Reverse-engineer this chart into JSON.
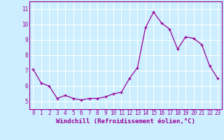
{
  "x": [
    0,
    1,
    2,
    3,
    4,
    5,
    6,
    7,
    8,
    9,
    10,
    11,
    12,
    13,
    14,
    15,
    16,
    17,
    18,
    19,
    20,
    21,
    22,
    23
  ],
  "y": [
    7.1,
    6.2,
    6.0,
    5.2,
    5.4,
    5.2,
    5.1,
    5.2,
    5.2,
    5.3,
    5.5,
    5.6,
    6.5,
    7.2,
    9.8,
    10.8,
    10.1,
    9.7,
    8.4,
    9.2,
    9.1,
    8.7,
    7.3,
    6.5
  ],
  "line_color": "#990099",
  "marker": "+",
  "bg_color": "#cceeff",
  "grid_color": "#ffffff",
  "xlabel": "Windchill (Refroidissement éolien,°C)",
  "ylim": [
    4.5,
    11.5
  ],
  "xlim": [
    -0.5,
    23.5
  ],
  "yticks": [
    5,
    6,
    7,
    8,
    9,
    10,
    11
  ],
  "xticks": [
    0,
    1,
    2,
    3,
    4,
    5,
    6,
    7,
    8,
    9,
    10,
    11,
    12,
    13,
    14,
    15,
    16,
    17,
    18,
    19,
    20,
    21,
    22,
    23
  ],
  "tick_label_fontsize": 5.5,
  "xlabel_fontsize": 6.5,
  "marker_size": 3,
  "line_width": 0.9
}
